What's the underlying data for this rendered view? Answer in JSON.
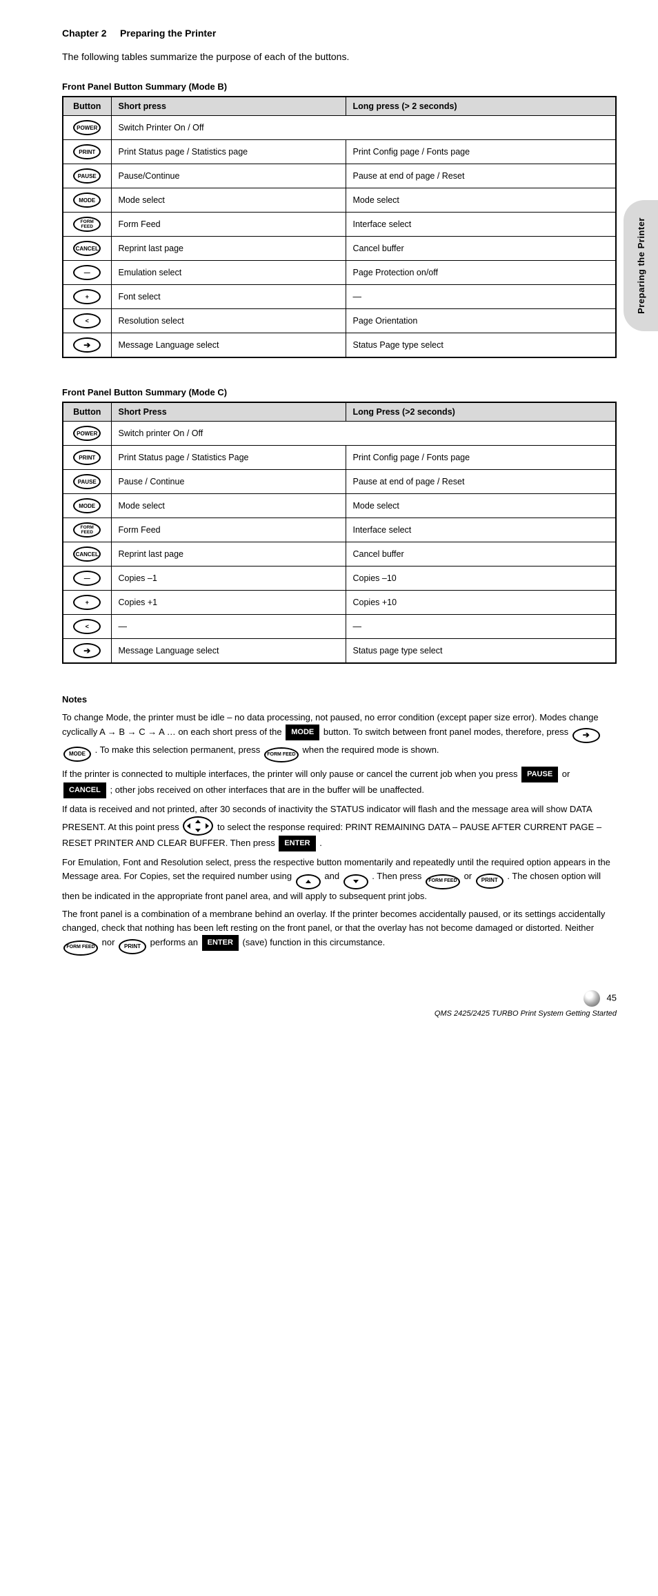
{
  "header": {
    "chapter": "Chapter 2",
    "title": "Preparing the Printer"
  },
  "sideTab": "Preparing the Printer",
  "intro": "The following tables summarize the purpose of each of the buttons.",
  "tables": [
    {
      "title": "Front Panel Button Summary (Mode B)",
      "columns": [
        "Button",
        "Short press",
        "Long press (> 2 seconds)"
      ],
      "rows": [
        {
          "btn": "POWER",
          "short": "Switch Printer On / Off",
          "long": "",
          "colspan": true
        },
        {
          "btn": "PRINT",
          "short": "Print Status page / Statistics page",
          "long": "Print Config page / Fonts page"
        },
        {
          "btn": "PAUSE",
          "short": "Pause/Continue",
          "long": "Pause at end of page / Reset"
        },
        {
          "btn": "MODE",
          "short": "Mode select",
          "long": "Mode select"
        },
        {
          "btn": "FORM FEED",
          "short": "Form Feed",
          "long": "Interface select"
        },
        {
          "btn": "CANCEL",
          "short": "Reprint last page",
          "long": "Cancel buffer"
        },
        {
          "btn": "―",
          "short": "Emulation select",
          "long": "Page Protection on/off"
        },
        {
          "btn": "+",
          "short": "Font select",
          "long": "―"
        },
        {
          "btn": "<",
          "short": "Resolution select",
          "long": "Page Orientation"
        },
        {
          "btn": "➔",
          "short": "Message Language select",
          "long": "Status Page type select"
        }
      ]
    },
    {
      "title": "Front Panel Button Summary (Mode C)",
      "columns": [
        "Button",
        "Short Press",
        "Long Press (>2 seconds)"
      ],
      "rows": [
        {
          "btn": "POWER",
          "short": "Switch printer On / Off",
          "long": "",
          "colspan": true
        },
        {
          "btn": "PRINT",
          "short": "Print Status page / Statistics Page",
          "long": "Print Config page / Fonts page"
        },
        {
          "btn": "PAUSE",
          "short": "Pause / Continue",
          "long": "Pause at end of page / Reset"
        },
        {
          "btn": "MODE",
          "short": "Mode select",
          "long": "Mode select"
        },
        {
          "btn": "FORM FEED",
          "short": "Form Feed",
          "long": "Interface select"
        },
        {
          "btn": "CANCEL",
          "short": "Reprint last page",
          "long": "Cancel buffer"
        },
        {
          "btn": "―",
          "short": "Copies –1",
          "long": "Copies –10"
        },
        {
          "btn": "+",
          "short": "Copies +1",
          "long": "Copies +10"
        },
        {
          "btn": "<",
          "short": "―",
          "long": "―"
        },
        {
          "btn": "➔",
          "short": "Message Language select",
          "long": "Status page type select"
        }
      ]
    }
  ],
  "notes": {
    "heading": "Notes",
    "items": [
      {
        "pre": "To change Mode, the printer must be idle – no data processing, not paused, no error condition (except paper size error). Modes change cyclically A → B → C → A … on each short press of the ",
        "label1": "MODE",
        "mid": " button. To switch between front panel modes, therefore, press ",
        "oval1": "➔",
        "oval2": "MODE",
        "mid2": " . To make this selection permanent, press ",
        "oval3": "FORM FEED",
        "post": " when the required mode is shown."
      },
      {
        "pre": "If the printer is connected to multiple interfaces, the printer will only pause or cancel the current job when you press ",
        "label": "PAUSE",
        "mid": " or ",
        "label2": "CANCEL",
        "post": " ; other jobs received on other interfaces that are in the buffer will be unaffected."
      },
      {
        "pre": "If data is received and not printed, after 30 seconds of inactivity the STATUS indicator will flash and the message area will show DATA PRESENT. At this point press ",
        "nav": true,
        "mid": " to select the response required: PRINT REMAINING DATA – PAUSE AFTER CURRENT PAGE – RESET PRINTER AND CLEAR BUFFER. Then press ",
        "label": "ENTER",
        "post": " ."
      },
      {
        "pre": "For Emulation, Font and Resolution select, press the respective button momentarily and repeatedly until the required option appears in the Message area. For Copies, set the required number using ",
        "up": true,
        "mid": " and ",
        "down": true,
        "mid2": " . Then press ",
        "oval1": "FORM FEED",
        "mid3": " or ",
        "oval2": "PRINT",
        "post": " . The chosen option will then be indicated in the appropriate front panel area, and will apply to subsequent print jobs."
      },
      {
        "pre": "The front panel is a combination of a membrane behind an overlay. If the printer becomes accidentally paused, or its settings accidentally changed, check that nothing has been left resting on the front panel, or that the overlay has not become damaged or distorted. Neither ",
        "oval1": "FORM FEED",
        "mid": " nor ",
        "oval2": "PRINT",
        "mid2": " performs an ",
        "label": "ENTER",
        "post": " (save) function in this circumstance."
      }
    ]
  },
  "footer": {
    "page": "45",
    "doc": "QMS 2425/2425 TURBO Print System Getting Started"
  }
}
